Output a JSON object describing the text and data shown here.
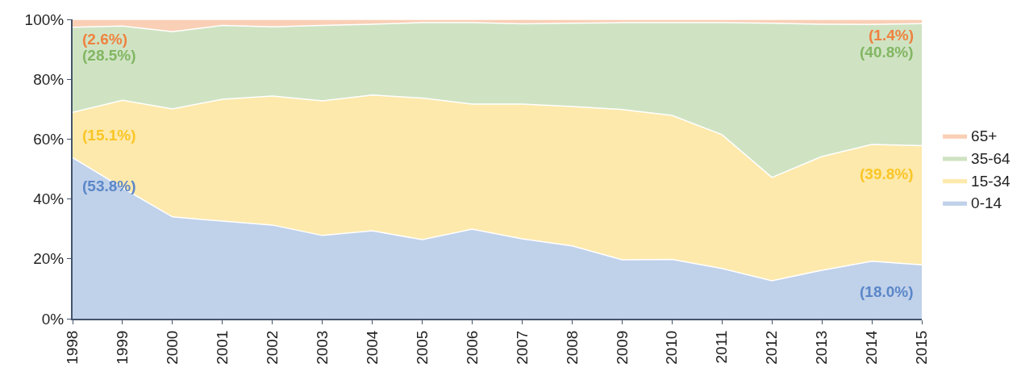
{
  "chart_data": {
    "type": "area",
    "stacked": true,
    "categories": [
      "1998",
      "1999",
      "2000",
      "2001",
      "2002",
      "2003",
      "2004",
      "2005",
      "2006",
      "2007",
      "2008",
      "2009",
      "2010",
      "2011",
      "2012",
      "2013",
      "2014",
      "2015"
    ],
    "series": [
      {
        "name": "0-14",
        "color": "#c0d1ea",
        "values": [
          53.8,
          43.7,
          34.0,
          32.6,
          31.3,
          27.8,
          29.4,
          26.4,
          29.9,
          26.7,
          24.3,
          19.7,
          19.8,
          16.8,
          12.7,
          16.2,
          19.2,
          18.0
        ],
        "value_labels": [
          "(53.8%)",
          null,
          null,
          null,
          null,
          null,
          null,
          null,
          null,
          null,
          null,
          null,
          null,
          null,
          null,
          null,
          null,
          "(18.0%)"
        ]
      },
      {
        "name": "15-34",
        "color": "#fde9ac",
        "values": [
          15.1,
          29.3,
          36.1,
          40.7,
          43.1,
          45.0,
          45.3,
          47.3,
          41.8,
          45.0,
          46.6,
          50.2,
          48.1,
          44.7,
          34.5,
          38.0,
          39.0,
          39.8
        ],
        "value_labels": [
          "(15.1%)",
          null,
          null,
          null,
          null,
          null,
          null,
          null,
          null,
          null,
          null,
          null,
          null,
          null,
          null,
          null,
          null,
          "(39.8%)"
        ]
      },
      {
        "name": "35-64",
        "color": "#cfe3c3",
        "values": [
          28.5,
          24.8,
          25.8,
          24.7,
          23.1,
          25.2,
          23.7,
          25.2,
          27.2,
          26.8,
          27.8,
          29.0,
          31.0,
          37.4,
          51.5,
          44.2,
          40.1,
          40.8
        ],
        "value_labels": [
          "(28.5%)",
          null,
          null,
          null,
          null,
          null,
          null,
          null,
          null,
          null,
          null,
          null,
          null,
          null,
          null,
          null,
          null,
          "(40.8%)"
        ]
      },
      {
        "name": "65+",
        "color": "#f9cfb5",
        "values": [
          2.6,
          2.2,
          4.1,
          2.0,
          2.5,
          2.0,
          1.6,
          1.1,
          1.1,
          1.5,
          1.3,
          1.1,
          1.1,
          1.1,
          1.3,
          1.6,
          1.7,
          1.4
        ],
        "value_labels": [
          "(2.6%)",
          null,
          null,
          null,
          null,
          null,
          null,
          null,
          null,
          null,
          null,
          null,
          null,
          null,
          null,
          null,
          null,
          "(1.4%)"
        ]
      }
    ],
    "ylim": [
      0,
      100
    ],
    "yticks": [
      {
        "value": 0,
        "label": "0%"
      },
      {
        "value": 20,
        "label": "20%"
      },
      {
        "value": 40,
        "label": "40%"
      },
      {
        "value": 60,
        "label": "60%"
      },
      {
        "value": 80,
        "label": "80%"
      },
      {
        "value": 100,
        "label": "100%"
      }
    ],
    "legend": "right"
  }
}
